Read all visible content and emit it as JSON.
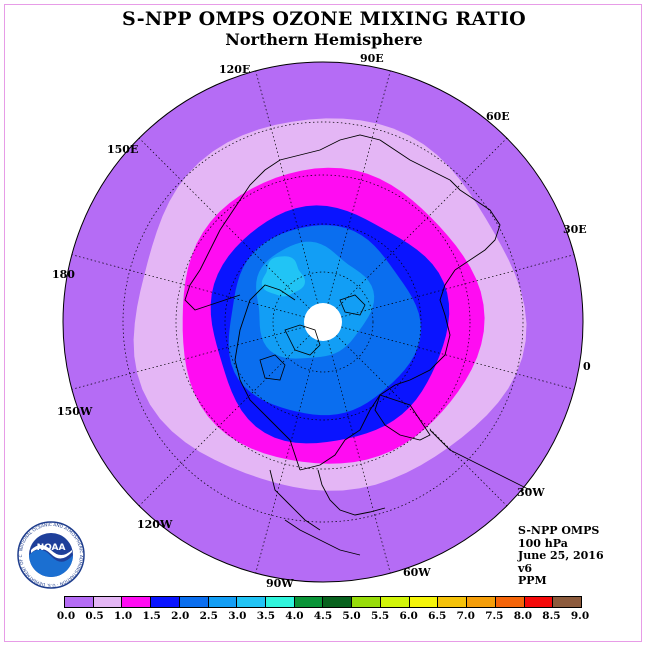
{
  "title": "S-NPP OMPS OZONE MIXING RATIO",
  "subtitle": "Northern Hemisphere",
  "longitude_labels": {
    "e90": "90E",
    "e60": "60E",
    "e30": "30E",
    "zero": "0",
    "w30": "30W",
    "w60": "60W",
    "w90": "90W",
    "w120": "120W",
    "w150": "150W",
    "d180": "180",
    "e150": "150E",
    "e120": "120E"
  },
  "info": {
    "instrument": "S-NPP OMPS",
    "level": "100 hPa",
    "date": "June 25, 2016",
    "version": "v6",
    "units": "PPM"
  },
  "logo": {
    "text": "NOAA",
    "ring_text": "NATIONAL OCEANIC AND ATMOSPHERIC ADMINISTRATION · U.S. DEPARTMENT OF COMMERCE"
  },
  "colorbar": {
    "ticks": [
      "0.0",
      "0.5",
      "1.0",
      "1.5",
      "2.0",
      "2.5",
      "3.0",
      "3.5",
      "4.0",
      "4.5",
      "5.0",
      "5.5",
      "6.0",
      "6.5",
      "7.0",
      "7.5",
      "8.0",
      "8.5",
      "9.0"
    ],
    "colors": [
      "#b56cf5",
      "#e4b6f5",
      "#ff0cf2",
      "#0a14ff",
      "#0a6eef",
      "#129ef5",
      "#21c4f5",
      "#30f5dc",
      "#0a9437",
      "#08621e",
      "#98dc0a",
      "#d2f50a",
      "#f5f50a",
      "#f5c20a",
      "#f59e0a",
      "#f5650a",
      "#f50a0a",
      "#8c5a3c"
    ]
  },
  "chart_data": {
    "type": "heatmap",
    "projection": "north polar stereographic",
    "variable": "ozone mixing ratio",
    "units": "PPM",
    "pressure_level": "100 hPa",
    "date": "June 25, 2016",
    "zones": [
      {
        "range": "0.0-0.5",
        "color": "#b56cf5",
        "region": "outer ring, lower latitudes"
      },
      {
        "range": "0.5-1.0",
        "color": "#e4b6f5",
        "region": "mid latitudes"
      },
      {
        "range": "1.0-1.5",
        "color": "#ff0cf2",
        "region": "high mid latitudes"
      },
      {
        "range": "1.5-2.0",
        "color": "#0a14ff",
        "region": "around 60-70N"
      },
      {
        "range": "2.0-2.5",
        "color": "#0a6eef",
        "region": "polar region"
      },
      {
        "range": "2.5-3.0",
        "color": "#129ef5",
        "region": "near pole"
      },
      {
        "range": "3.0-3.5",
        "color": "#21c4f5",
        "region": "small patches near pole"
      }
    ],
    "no_data": "polar cap (white)"
  }
}
